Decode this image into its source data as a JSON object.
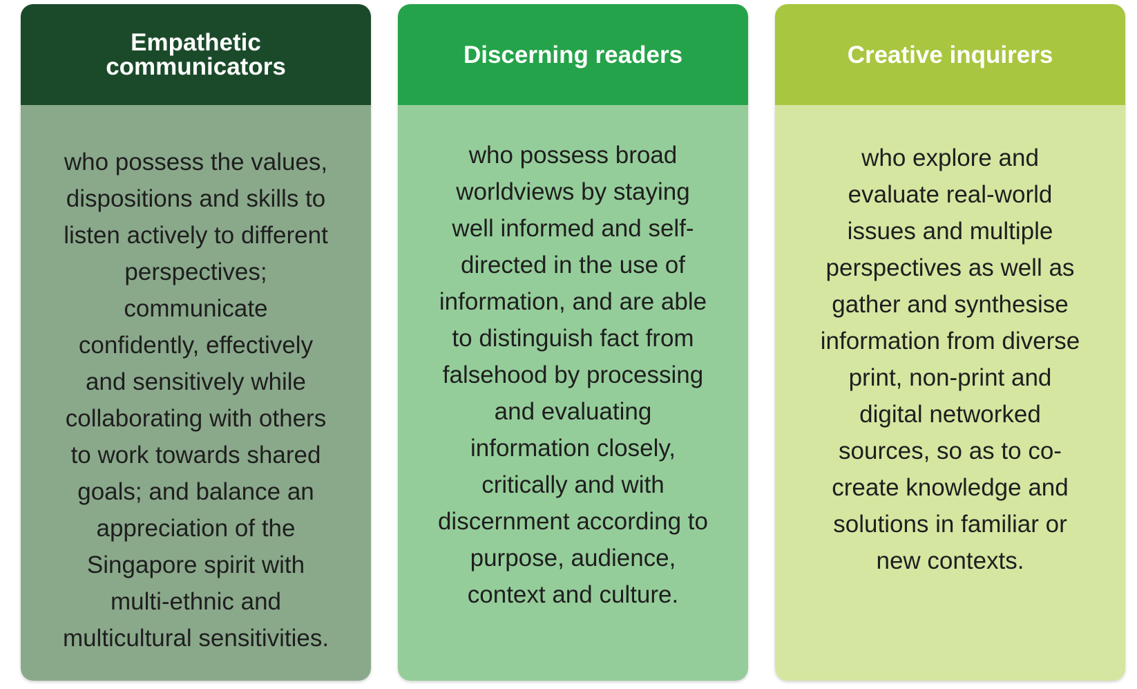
{
  "colors": {
    "card1_header": "#1b4a2a",
    "card1_body": "#8aa98b",
    "card2_header": "#25a34a",
    "card2_body": "#95cd9a",
    "card3_header": "#a8c63f",
    "card3_body": "#d5e6a1"
  },
  "cards": [
    {
      "title_lines": [
        "Empathetic",
        "communicators"
      ],
      "body_lines": [
        "who possess the values,",
        "dispositions and skills to",
        "listen actively to different",
        "perspectives;",
        "communicate",
        "confidently, effectively",
        "and sensitively while",
        "collaborating with others",
        "to work towards shared",
        "goals; and balance an",
        "appreciation of the",
        "Singapore spirit with",
        "multi-ethnic and",
        "multicultural sensitivities."
      ]
    },
    {
      "title_lines": [
        "Discerning readers"
      ],
      "body_lines": [
        "who possess broad",
        "worldviews by staying",
        "well informed and self-",
        "directed in the use of",
        "information, and are able",
        "to distinguish fact from",
        "falsehood by processing",
        "and evaluating",
        "information closely,",
        "critically and with",
        "discernment according to",
        "purpose, audience,",
        "context and culture."
      ]
    },
    {
      "title_lines": [
        "Creative inquirers"
      ],
      "body_lines": [
        "who explore and",
        "evaluate real-world",
        "issues and multiple",
        "perspectives as well as",
        "gather and synthesise",
        "information from diverse",
        "print, non-print and",
        "digital networked",
        "sources, so as to co-",
        "create knowledge and",
        "solutions in familiar or",
        "new contexts."
      ]
    }
  ]
}
